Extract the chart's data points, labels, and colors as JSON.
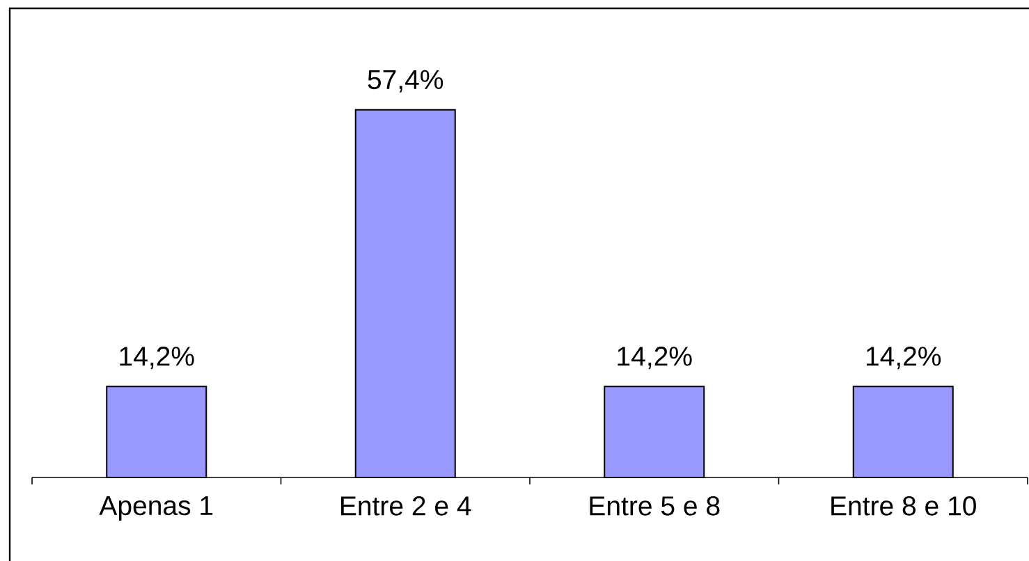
{
  "chart_data": {
    "type": "bar",
    "categories": [
      "Apenas 1",
      "Entre 2 e 4",
      "Entre 5 e 8",
      "Entre 8 e 10"
    ],
    "values": [
      14.2,
      57.4,
      14.2,
      14.2
    ],
    "value_labels": [
      "14,2%",
      "57,4%",
      "14,2%",
      "14,2%"
    ],
    "color": "#9999ff"
  }
}
